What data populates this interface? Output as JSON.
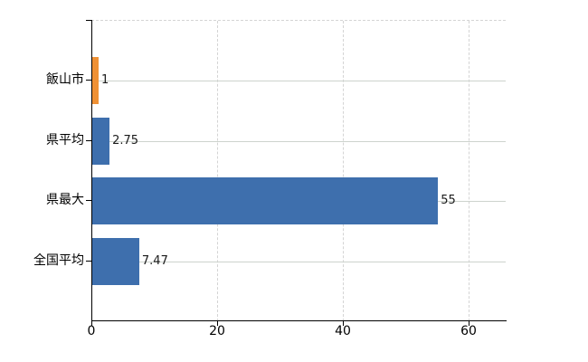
{
  "chart_data": {
    "type": "bar",
    "orientation": "horizontal",
    "title": "",
    "categories": [
      "飯山市",
      "県平均",
      "県最大",
      "全国平均"
    ],
    "values": [
      1,
      2.75,
      55,
      7.47
    ],
    "value_labels": [
      "1",
      "2.75",
      "55",
      "7.47"
    ],
    "series_colors": [
      "#ef9135",
      "#3e6fad",
      "#3e6fad",
      "#3e6fad"
    ],
    "x_tick_labels": [
      "0",
      "20",
      "40",
      "60"
    ],
    "x_tick_values": [
      0,
      20,
      40,
      60
    ],
    "xlim": [
      0,
      66
    ],
    "legend": "none",
    "grid": {
      "vertical_lines": "dashed",
      "horizontal_row_lines": "solid",
      "top_border": "dashed"
    }
  },
  "colors": {
    "background": "#ffffff",
    "axis": "#000000",
    "grid_vertical": "#d4d4d4",
    "grid_horizontal": "#cdd3cd",
    "bar_highlight_orange": "#ef9135",
    "bar_blue": "#3e6fad",
    "text": "#000000"
  }
}
